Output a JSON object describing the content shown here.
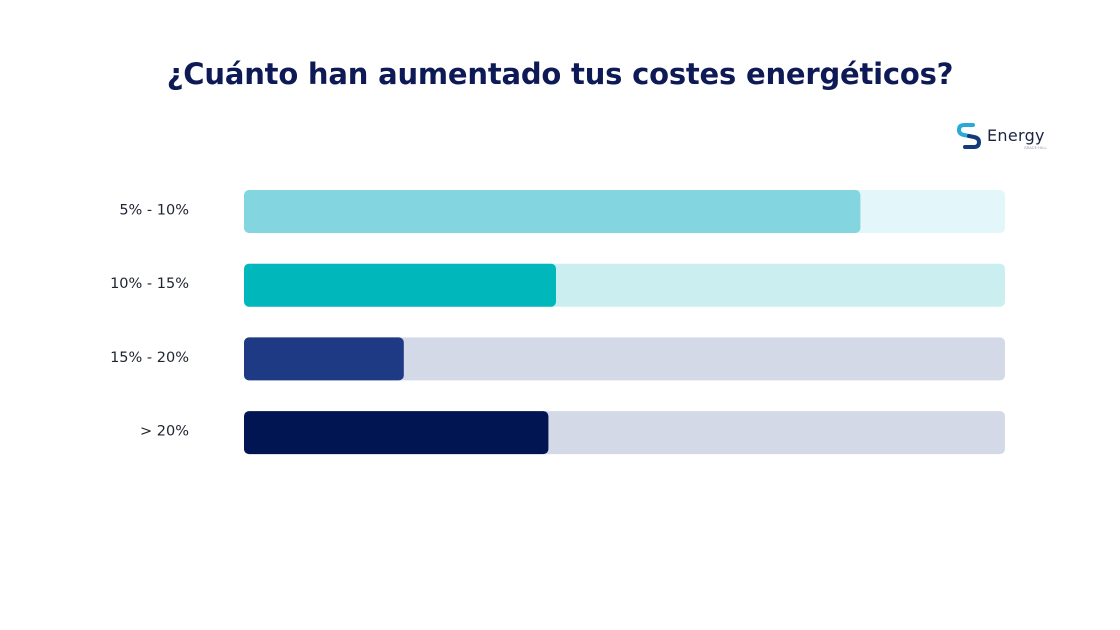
{
  "title": "¿Cuánto han aumentado tus costes energéticos?",
  "logo": {
    "name": "Energy",
    "tagline": "GRACE HILL"
  },
  "chart_data": {
    "type": "bar",
    "orientation": "horizontal",
    "title": "¿Cuánto han aumentado tus costes energéticos?",
    "categories": [
      "5% - 10%",
      "10% -  15%",
      "15% - 20%",
      "> 20%"
    ],
    "values": [
      81,
      41,
      21,
      40
    ],
    "xlim": [
      0,
      100
    ],
    "grid": false,
    "legend": "none",
    "colors": {
      "fills": [
        "#83d5e0",
        "#00b7bc",
        "#1e3a84",
        "#021553"
      ],
      "tracks": [
        "#e3f6f9",
        "#cbeff0",
        "#d3d9e7",
        "#d3d9e7"
      ]
    }
  }
}
